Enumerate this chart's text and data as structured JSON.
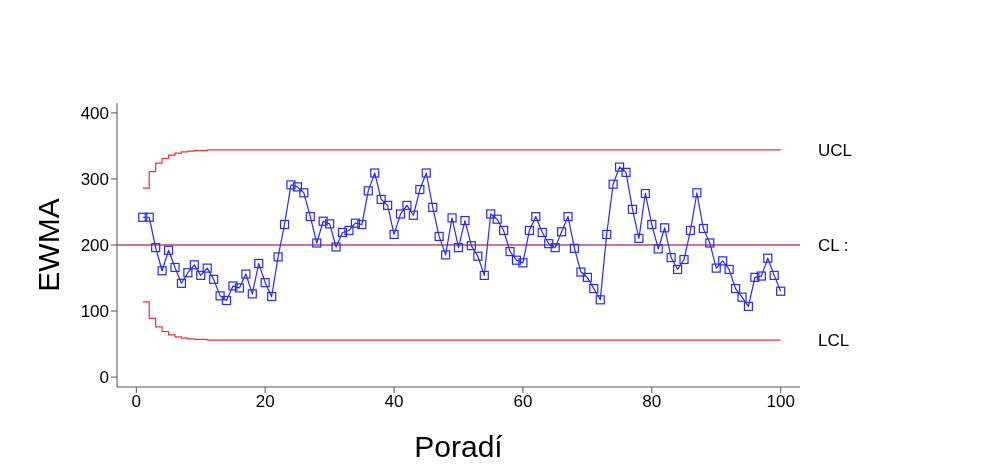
{
  "chart_data": {
    "type": "line",
    "xlabel": "Poradí",
    "ylabel": "EWMA",
    "xlim": [
      -3,
      103
    ],
    "ylim": [
      -15,
      415
    ],
    "xticks": [
      0,
      20,
      40,
      60,
      80,
      100
    ],
    "yticks": [
      0,
      100,
      200,
      300,
      400
    ],
    "series": [
      {
        "color": "#2828ff",
        "marker": "square",
        "x": [
          1,
          2,
          3,
          4,
          5,
          6,
          7,
          8,
          9,
          10,
          11,
          12,
          13,
          14,
          15,
          16,
          17,
          18,
          19,
          20,
          21,
          22,
          23,
          24,
          25,
          26,
          27,
          28,
          29,
          30,
          31,
          32,
          33,
          34,
          35,
          36,
          37,
          38,
          39,
          40,
          41,
          42,
          43,
          44,
          45,
          46,
          47,
          48,
          49,
          50,
          51,
          52,
          53,
          54,
          55,
          56,
          57,
          58,
          59,
          60,
          61,
          62,
          63,
          64,
          65,
          66,
          67,
          68,
          69,
          70,
          71,
          72,
          73,
          74,
          75,
          76,
          77,
          78,
          79,
          80,
          81,
          82,
          83,
          84,
          85,
          86,
          87,
          88,
          89,
          90,
          91,
          92,
          93,
          94,
          95,
          96,
          97,
          98,
          99,
          100
        ],
        "values": [
          242,
          242,
          196,
          161,
          192,
          166,
          142,
          158,
          170,
          154,
          165,
          148,
          123,
          116,
          138,
          135,
          156,
          126,
          172,
          143,
          122,
          182,
          231,
          291,
          288,
          279,
          243,
          203,
          236,
          232,
          197,
          219,
          222,
          233,
          231,
          282,
          309,
          269,
          260,
          216,
          247,
          260,
          245,
          284,
          309,
          257,
          213,
          185,
          241,
          196,
          237,
          199,
          183,
          154,
          247,
          239,
          222,
          190,
          177,
          173,
          222,
          243,
          219,
          202,
          196,
          220,
          243,
          195,
          159,
          151,
          134,
          117,
          216,
          292,
          318,
          310,
          254,
          210,
          278,
          231,
          194,
          226,
          181,
          163,
          178,
          222,
          279,
          225,
          203,
          165,
          176,
          163,
          134,
          121,
          107,
          151,
          153,
          180,
          154,
          130
        ]
      },
      {
        "type": "step",
        "name": "UCL",
        "color": "#ff2a2a",
        "marker": "none",
        "x": [
          1,
          2,
          3,
          4,
          5,
          6,
          7,
          8,
          9,
          10,
          11,
          12,
          100
        ],
        "values": [
          286,
          311,
          324,
          331,
          336,
          339,
          341,
          342,
          343,
          343,
          344,
          344,
          344
        ]
      },
      {
        "type": "step",
        "name": "LCL",
        "color": "#ff2a2a",
        "marker": "none",
        "x": [
          1,
          2,
          3,
          4,
          5,
          6,
          7,
          8,
          9,
          10,
          11,
          12,
          100
        ],
        "values": [
          114,
          89,
          76,
          69,
          64,
          61,
          59,
          58,
          57,
          57,
          56,
          56,
          56
        ]
      }
    ],
    "ref_lines": [
      {
        "axis": "y",
        "value": 200,
        "label": "CL :",
        "color": "#b04878"
      }
    ]
  }
}
